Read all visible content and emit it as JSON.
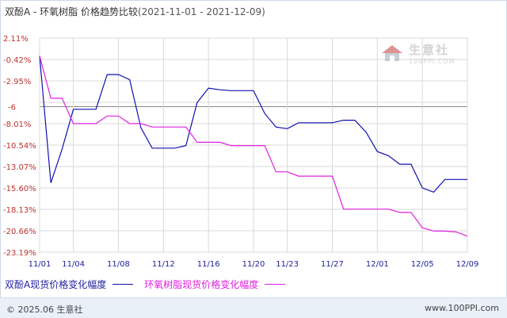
{
  "title": {
    "main": "双酚A - 环氧树脂 价格趋势比较",
    "range": "(2021-11-01 - 2021-12-09)"
  },
  "watermark": {
    "brand": "生意社",
    "url": "100PPI.COM",
    "icon": "house-logo-icon"
  },
  "footer": {
    "copyright": "© 2025.06 生意社",
    "url": "www.100PPI.com"
  },
  "colors": {
    "series_a": "#1010b0",
    "series_b": "#e020e0",
    "reference": "#888888",
    "grid": "#d8d8d8",
    "axis": "#c03030"
  },
  "chart_data": {
    "type": "line",
    "title": "双酚A - 环氧树脂 价格趋势比较",
    "xlim": [
      "11/01",
      "12/09"
    ],
    "ylim": [
      -23.19,
      2.11
    ],
    "yticks": [
      2.11,
      -0.42,
      -2.95,
      -5.48,
      -8.01,
      -10.54,
      -13.07,
      -15.6,
      -18.13,
      -20.66,
      -23.19
    ],
    "ytick_labels": [
      "2.11%",
      "-0.42%",
      "-2.95%",
      "",
      "-8.01%",
      "-10.54%",
      "-13.07%",
      "-15.60%",
      "-18.13%",
      "-20.66%",
      "-23.19%"
    ],
    "xtick_labels": [
      "11/01",
      "11/04",
      "11/08",
      "11/12",
      "11/16",
      "11/20",
      "11/23",
      "11/27",
      "12/01",
      "12/05",
      "12/09"
    ],
    "reference_line": {
      "value": -6,
      "label": "-6"
    },
    "grid": true,
    "legend_position": "bottom",
    "series": [
      {
        "name": "双酚A现货价格变化幅度",
        "color": "#1010b0",
        "points": [
          [
            "11/01",
            0
          ],
          [
            "11/02",
            -15
          ],
          [
            "11/03",
            -11
          ],
          [
            "11/04",
            -6.3
          ],
          [
            "11/05",
            -6.3
          ],
          [
            "11/06",
            -6.3
          ],
          [
            "11/07",
            -2.2
          ],
          [
            "11/08",
            -2.2
          ],
          [
            "11/09",
            -2.8
          ],
          [
            "11/10",
            -8.5
          ],
          [
            "11/11",
            -10.9
          ],
          [
            "11/12",
            -10.9
          ],
          [
            "11/13",
            -10.9
          ],
          [
            "11/14",
            -10.6
          ],
          [
            "11/15",
            -5.5
          ],
          [
            "11/16",
            -3.8
          ],
          [
            "11/17",
            -4
          ],
          [
            "11/18",
            -4.1
          ],
          [
            "11/19",
            -4.1
          ],
          [
            "11/20",
            -4.1
          ],
          [
            "11/21",
            -6.8
          ],
          [
            "11/22",
            -8.4
          ],
          [
            "11/23",
            -8.6
          ],
          [
            "11/24",
            -7.9
          ],
          [
            "11/25",
            -7.9
          ],
          [
            "11/26",
            -7.9
          ],
          [
            "11/27",
            -7.9
          ],
          [
            "11/28",
            -7.6
          ],
          [
            "11/29",
            -7.6
          ],
          [
            "11/30",
            -9
          ],
          [
            "12/01",
            -11.3
          ],
          [
            "12/02",
            -11.8
          ],
          [
            "12/03",
            -12.8
          ],
          [
            "12/04",
            -12.8
          ],
          [
            "12/05",
            -15.6
          ],
          [
            "12/06",
            -16.1
          ],
          [
            "12/07",
            -14.6
          ],
          [
            "12/08",
            -14.6
          ],
          [
            "12/09",
            -14.6
          ]
        ]
      },
      {
        "name": "环氧树脂现货价格变化幅度",
        "color": "#e020e0",
        "points": [
          [
            "11/01",
            0
          ],
          [
            "11/02",
            -5
          ],
          [
            "11/03",
            -5
          ],
          [
            "11/04",
            -8
          ],
          [
            "11/05",
            -8
          ],
          [
            "11/06",
            -8
          ],
          [
            "11/07",
            -7.1
          ],
          [
            "11/08",
            -7.1
          ],
          [
            "11/09",
            -8
          ],
          [
            "11/10",
            -8
          ],
          [
            "11/11",
            -8.4
          ],
          [
            "11/12",
            -8.4
          ],
          [
            "11/13",
            -8.4
          ],
          [
            "11/14",
            -8.4
          ],
          [
            "11/15",
            -10.2
          ],
          [
            "11/16",
            -10.2
          ],
          [
            "11/17",
            -10.2
          ],
          [
            "11/18",
            -10.6
          ],
          [
            "11/19",
            -10.6
          ],
          [
            "11/20",
            -10.6
          ],
          [
            "11/21",
            -10.6
          ],
          [
            "11/22",
            -13.7
          ],
          [
            "11/23",
            -13.7
          ],
          [
            "11/24",
            -14.2
          ],
          [
            "11/25",
            -14.2
          ],
          [
            "11/26",
            -14.2
          ],
          [
            "11/27",
            -14.2
          ],
          [
            "11/28",
            -18.1
          ],
          [
            "11/29",
            -18.1
          ],
          [
            "11/30",
            -18.1
          ],
          [
            "12/01",
            -18.1
          ],
          [
            "12/02",
            -18.1
          ],
          [
            "12/03",
            -18.5
          ],
          [
            "12/04",
            -18.5
          ],
          [
            "12/05",
            -20.3
          ],
          [
            "12/06",
            -20.7
          ],
          [
            "12/07",
            -20.7
          ],
          [
            "12/08",
            -20.8
          ],
          [
            "12/09",
            -21.3
          ]
        ]
      }
    ]
  }
}
